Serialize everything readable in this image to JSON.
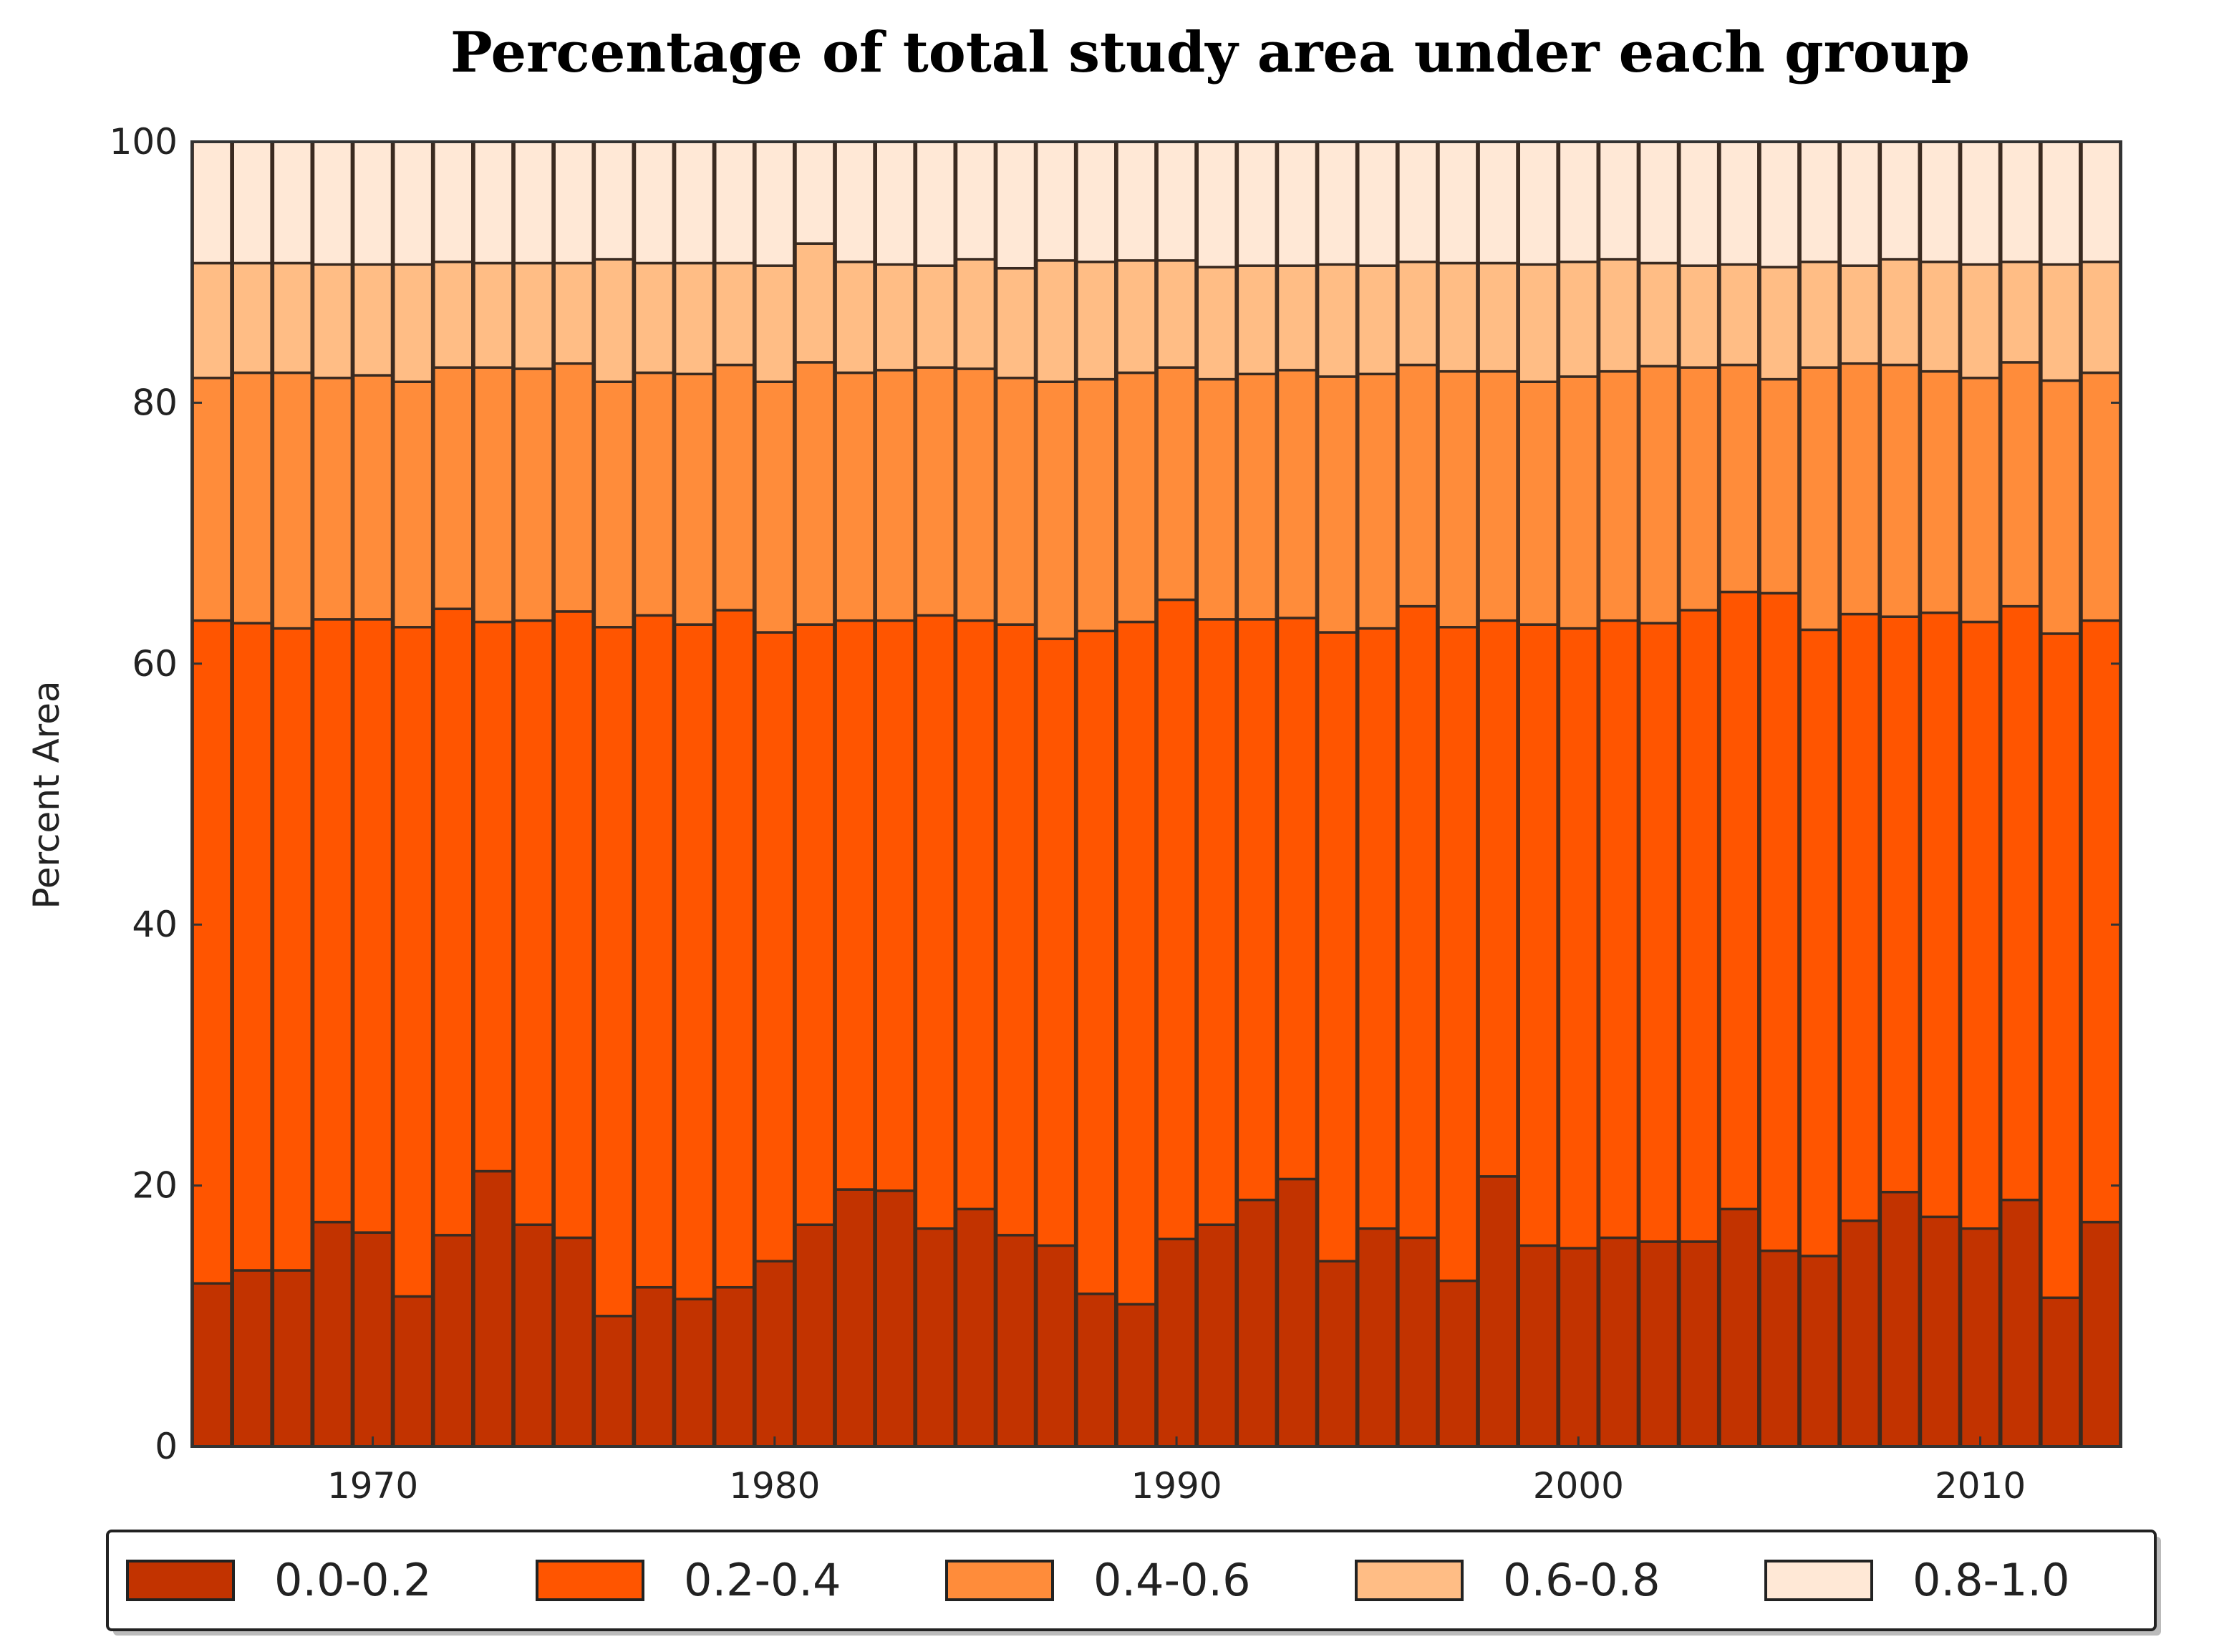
{
  "chart_data": {
    "type": "bar",
    "stacked": true,
    "title": "Percentage of total study area under each group",
    "xlabel": "",
    "ylabel": "Percent Area",
    "ylim": [
      0,
      100
    ],
    "yticks": [
      0,
      20,
      40,
      60,
      80,
      100
    ],
    "xticks": [
      1970,
      1980,
      1990,
      2000,
      2010
    ],
    "xlim": [
      1965.5,
      2013.5
    ],
    "grid": false,
    "legend": "bottom",
    "categories": [
      1966,
      1967,
      1968,
      1969,
      1970,
      1971,
      1972,
      1973,
      1974,
      1975,
      1976,
      1977,
      1978,
      1979,
      1980,
      1981,
      1982,
      1983,
      1984,
      1985,
      1986,
      1987,
      1988,
      1989,
      1990,
      1991,
      1992,
      1993,
      1994,
      1995,
      1996,
      1997,
      1998,
      1999,
      2000,
      2001,
      2002,
      2003,
      2004,
      2005,
      2006,
      2007,
      2008,
      2009,
      2010,
      2011,
      2012,
      2013
    ],
    "series": [
      {
        "name": "0.0-0.2",
        "color": "#c23300",
        "values": [
          12.5,
          13.5,
          13.5,
          17.2,
          16.4,
          11.5,
          16.2,
          21.1,
          17,
          16,
          10,
          12.2,
          11.3,
          12.2,
          14.2,
          17,
          19.7,
          19.6,
          16.7,
          18.2,
          16.2,
          15.4,
          11.7,
          10.9,
          15.9,
          17,
          18.9,
          20.5,
          14.2,
          16.7,
          16,
          12.7,
          20.7,
          15.4,
          15.2,
          16,
          15.7,
          15.7,
          18.2,
          15,
          14.6,
          17.3,
          19.5,
          17.6,
          16.7,
          18.9,
          11.4,
          17.2
        ]
      },
      {
        "name": "0.2-0.4",
        "color": "#ff5500",
        "values": [
          50.8,
          49.6,
          49.2,
          46.2,
          47,
          51.3,
          48,
          42.1,
          46.3,
          48,
          52.8,
          51.5,
          51.7,
          51.9,
          48.2,
          46,
          43.6,
          43.7,
          47,
          45.1,
          46.8,
          46.5,
          50.8,
          52.3,
          49,
          46.4,
          44.5,
          43,
          48.2,
          46,
          48.4,
          50.1,
          42.6,
          47.6,
          47.5,
          47.3,
          47.4,
          48.4,
          47.3,
          50.4,
          48,
          46.5,
          44.1,
          46.3,
          46.5,
          45.5,
          50.9,
          46.1
        ]
      },
      {
        "name": "0.4-0.6",
        "color": "#ff8c3a",
        "values": [
          18.6,
          19.2,
          19.6,
          18.5,
          18.7,
          18.8,
          18.5,
          19.5,
          19.3,
          19,
          18.8,
          18.6,
          19.2,
          18.8,
          19.2,
          20.1,
          19,
          19.2,
          19,
          19.3,
          18.9,
          19.7,
          19.3,
          19.1,
          17.8,
          18.4,
          18.8,
          19,
          19.6,
          19.5,
          18.5,
          19.6,
          19.1,
          18.6,
          19.3,
          19.1,
          19.7,
          18.6,
          17.4,
          16.4,
          20.1,
          19.2,
          19.3,
          18.5,
          18.7,
          18.7,
          19.4,
          19
        ]
      },
      {
        "name": "0.6-0.8",
        "color": "#ffbd85",
        "values": [
          8.8,
          8.4,
          8.4,
          8.7,
          8.5,
          9,
          8.1,
          8,
          8.1,
          7.7,
          9.4,
          8.4,
          8.5,
          7.8,
          8.9,
          9.1,
          8.5,
          8.1,
          7.8,
          8.4,
          8.4,
          9.3,
          9,
          8.6,
          8.2,
          8.6,
          8.3,
          8,
          8.6,
          8.3,
          7.9,
          8.3,
          8.3,
          9,
          8.8,
          8.6,
          7.9,
          7.8,
          7.7,
          8.6,
          8.1,
          7.5,
          8.1,
          8.4,
          8.7,
          7.7,
          8.9,
          8.5
        ]
      },
      {
        "name": "0.8-1.0",
        "color": "#ffe8d6",
        "values": [
          9.3,
          9.3,
          9.3,
          9.4,
          9.4,
          9.4,
          9.2,
          9.3,
          9.3,
          9.3,
          9,
          9.3,
          9.3,
          9.3,
          9.5,
          7.8,
          9.2,
          9.4,
          9.5,
          9,
          9.7,
          9.1,
          9.2,
          9.1,
          9.1,
          9.6,
          9.5,
          9.5,
          9.4,
          9.5,
          9.2,
          9.3,
          9.3,
          9.4,
          9.2,
          9,
          9.3,
          9.5,
          9.4,
          9.6,
          9.2,
          9.5,
          9,
          9.2,
          9.4,
          9.2,
          9.4,
          9.2
        ]
      }
    ]
  }
}
